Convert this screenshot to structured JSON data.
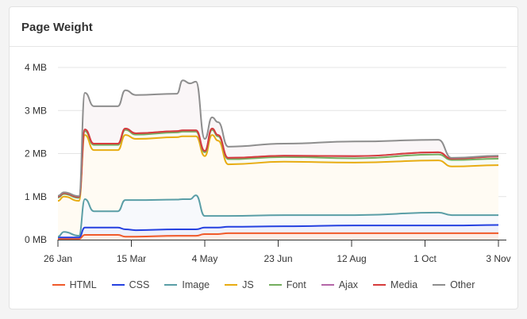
{
  "card": {
    "title": "Page Weight"
  },
  "chart_data": {
    "type": "area",
    "stacked": true,
    "title": "Page Weight",
    "xlabel": "",
    "ylabel": "",
    "ylim": [
      0,
      4
    ],
    "y_unit": "MB",
    "y_ticks": [
      "0 MB",
      "1 MB",
      "2 MB",
      "3 MB",
      "4 MB"
    ],
    "x_ticks": [
      "26 Jan",
      "15 Mar",
      "4 May",
      "23 Jun",
      "12 Aug",
      "1 Oct",
      "3 Nov"
    ],
    "grid": true,
    "legend_position": "bottom",
    "x": [
      "26 Jan",
      "30 Jan",
      "9 Feb",
      "13 Feb",
      "19 Feb",
      "6 Mar",
      "11 Mar",
      "18 Mar",
      "15 Apr",
      "19 Apr",
      "24 Apr",
      "28 Apr",
      "4 May",
      "9 May",
      "13 May",
      "20 May",
      "27 Jun",
      "14 Aug",
      "7 Oct",
      "13 Oct",
      "3 Nov"
    ],
    "series": [
      {
        "name": "HTML",
        "color": "#f05a2a",
        "fill": "#fdece6",
        "values": [
          0.02,
          0.02,
          0.02,
          0.11,
          0.11,
          0.11,
          0.07,
          0.07,
          0.09,
          0.09,
          0.09,
          0.09,
          0.13,
          0.13,
          0.13,
          0.15,
          0.15,
          0.15,
          0.15,
          0.15,
          0.15
        ]
      },
      {
        "name": "CSS",
        "color": "#2541e0",
        "fill": "#eef0fc",
        "values": [
          0.03,
          0.03,
          0.03,
          0.17,
          0.17,
          0.17,
          0.17,
          0.15,
          0.15,
          0.15,
          0.15,
          0.15,
          0.15,
          0.15,
          0.15,
          0.15,
          0.16,
          0.18,
          0.18,
          0.18,
          0.19
        ]
      },
      {
        "name": "Image",
        "color": "#5a9ea6",
        "fill": "#f7f9fc",
        "values": [
          0.02,
          0.13,
          0.04,
          0.66,
          0.38,
          0.38,
          0.68,
          0.7,
          0.69,
          0.7,
          0.7,
          0.79,
          0.27,
          0.27,
          0.27,
          0.25,
          0.26,
          0.24,
          0.3,
          0.24,
          0.23
        ]
      },
      {
        "name": "JS",
        "color": "#e8ac12",
        "fill": "#fffbf3",
        "values": [
          0.83,
          0.82,
          0.81,
          1.49,
          1.42,
          1.42,
          1.51,
          1.42,
          1.45,
          1.46,
          1.46,
          1.37,
          1.39,
          1.88,
          1.75,
          1.2,
          1.24,
          1.22,
          1.21,
          1.13,
          1.16
        ]
      },
      {
        "name": "Font",
        "color": "#74ae5e",
        "fill": "#f6faf4",
        "values": [
          0.08,
          0.06,
          0.07,
          0.09,
          0.12,
          0.12,
          0.12,
          0.1,
          0.11,
          0.11,
          0.11,
          0.11,
          0.09,
          0.12,
          0.1,
          0.12,
          0.11,
          0.1,
          0.14,
          0.15,
          0.15
        ]
      },
      {
        "name": "Ajax",
        "color": "#b466a8",
        "fill": "#f9f1f8",
        "values": [
          0.02,
          0.02,
          0.02,
          0.04,
          0.03,
          0.03,
          0.03,
          0.03,
          0.03,
          0.03,
          0.03,
          0.03,
          0.03,
          0.03,
          0.03,
          0.03,
          0.03,
          0.05,
          0.05,
          0.03,
          0.05
        ]
      },
      {
        "name": "Media",
        "color": "#d63c3c",
        "fill": "#fbeeee",
        "values": [
          0,
          0,
          0,
          0,
          0,
          0,
          0,
          0,
          0,
          0,
          0,
          0,
          0,
          0,
          0,
          0,
          0,
          0,
          0,
          0,
          0
        ]
      },
      {
        "name": "Other",
        "color": "#8e8e8e",
        "fill": "#faf6f7",
        "values": [
          0.02,
          0.02,
          0.02,
          0.85,
          0.87,
          0.87,
          0.89,
          0.89,
          0.87,
          1.16,
          1.09,
          1.13,
          0.28,
          0.26,
          0.3,
          0.26,
          0.28,
          0.34,
          0.29,
          0.02,
          0.02
        ]
      }
    ]
  }
}
